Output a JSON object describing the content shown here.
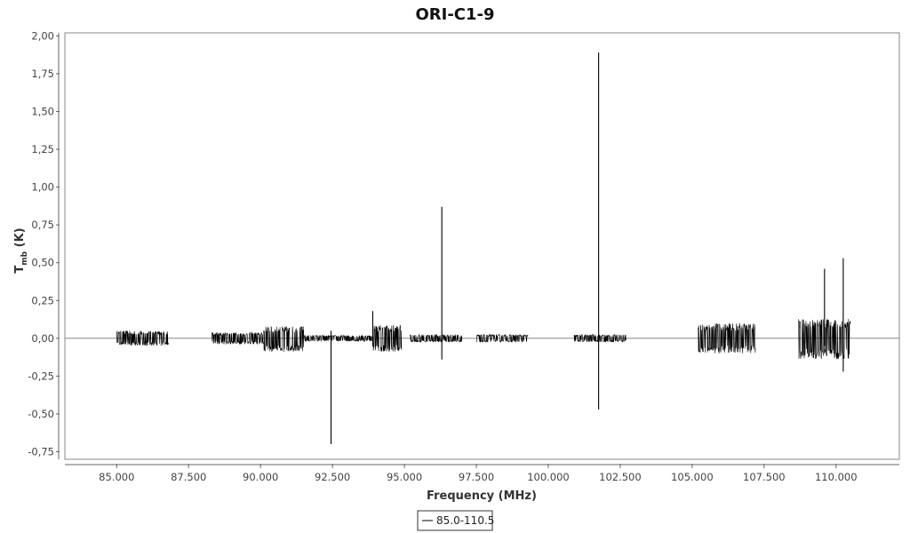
{
  "chart_data": {
    "type": "line",
    "title": "ORI-C1-9",
    "xlabel": "Frequency (MHz)",
    "ylabel_main": "T",
    "ylabel_sub": "mb",
    "ylabel_unit": " (K)",
    "xlim": [
      83.2,
      112.2
    ],
    "ylim": [
      -0.8,
      2.02
    ],
    "xticks": [
      85.0,
      87.5,
      90.0,
      92.5,
      95.0,
      97.5,
      100.0,
      102.5,
      105.0,
      107.5,
      110.0
    ],
    "xtick_labels": [
      "85.000",
      "87.500",
      "90.000",
      "92.500",
      "95.000",
      "97.500",
      "100.000",
      "102.500",
      "105.000",
      "107.500",
      "110.000"
    ],
    "yticks": [
      -0.75,
      -0.5,
      -0.25,
      0.0,
      0.25,
      0.5,
      0.75,
      1.0,
      1.25,
      1.5,
      1.75,
      2.0
    ],
    "ytick_labels": [
      "-0,75",
      "-0,50",
      "-0,25",
      "0,00",
      "0,25",
      "0,50",
      "0,75",
      "1,00",
      "1,25",
      "1,50",
      "1,75",
      "2,00"
    ],
    "grid": false,
    "legend_position": "bottom-center",
    "series": [
      {
        "name": "85.0-110.5",
        "color": "#000000",
        "noise_bands": [
          {
            "x_start": 85.0,
            "x_end": 86.8,
            "y_min": -0.05,
            "y_max": 0.05
          },
          {
            "x_start": 88.3,
            "x_end": 90.1,
            "y_min": -0.04,
            "y_max": 0.04
          },
          {
            "x_start": 90.1,
            "x_end": 91.5,
            "y_min": -0.09,
            "y_max": 0.08
          },
          {
            "x_start": 91.5,
            "x_end": 93.9,
            "y_min": -0.02,
            "y_max": 0.02
          },
          {
            "x_start": 93.9,
            "x_end": 94.9,
            "y_min": -0.09,
            "y_max": 0.09
          },
          {
            "x_start": 95.2,
            "x_end": 97.0,
            "y_min": -0.025,
            "y_max": 0.025
          },
          {
            "x_start": 97.5,
            "x_end": 99.3,
            "y_min": -0.025,
            "y_max": 0.025
          },
          {
            "x_start": 100.9,
            "x_end": 102.7,
            "y_min": -0.025,
            "y_max": 0.025
          },
          {
            "x_start": 105.2,
            "x_end": 107.2,
            "y_min": -0.1,
            "y_max": 0.1
          },
          {
            "x_start": 108.7,
            "x_end": 110.5,
            "y_min": -0.14,
            "y_max": 0.13
          }
        ],
        "spikes": [
          {
            "x": 92.45,
            "y_min": -0.7,
            "y_max": 0.05
          },
          {
            "x": 93.9,
            "y_min": -0.05,
            "y_max": 0.18
          },
          {
            "x": 96.3,
            "y_min": -0.14,
            "y_max": 0.87
          },
          {
            "x": 101.75,
            "y_min": -0.47,
            "y_max": 1.89
          },
          {
            "x": 109.6,
            "y_min": -0.05,
            "y_max": 0.46
          },
          {
            "x": 110.25,
            "y_min": -0.22,
            "y_max": 0.53
          }
        ]
      }
    ]
  }
}
